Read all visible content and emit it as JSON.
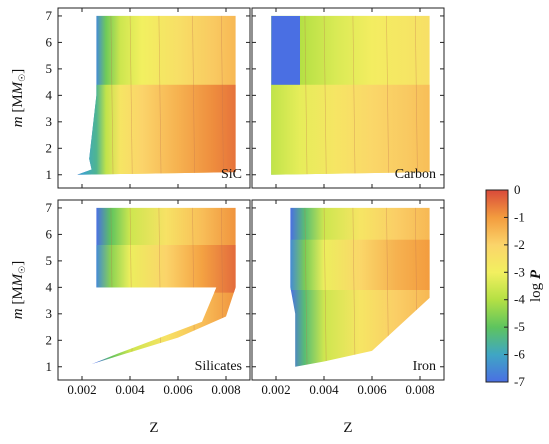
{
  "chart_data": {
    "type": "heatmap",
    "layout": "2x2 panels sharing axes",
    "x": {
      "label": "Z",
      "range": [
        0.001,
        0.009
      ],
      "ticks": [
        0.002,
        0.004,
        0.006,
        0.008
      ],
      "tick_labels": [
        "0.002",
        "0.004",
        "0.006",
        "0.008"
      ]
    },
    "y": {
      "label_main": "m",
      "label_unit": "[M",
      "label_sub": "☉",
      "label_close": "]",
      "range": [
        0.5,
        7.3
      ],
      "ticks": [
        1,
        2,
        3,
        4,
        5,
        6,
        7
      ],
      "tick_labels": [
        "1",
        "2",
        "3",
        "4",
        "5",
        "6",
        "7"
      ]
    },
    "colorbar": {
      "label_prefix": "log",
      "label_var": "P",
      "range": [
        -7,
        0
      ],
      "ticks": [
        0,
        -1,
        -2,
        -3,
        -4,
        -5,
        -6,
        -7
      ],
      "tick_labels": [
        "0",
        "-1",
        "-2",
        "-3",
        "-4",
        "-5",
        "-6",
        "-7"
      ],
      "stops": [
        {
          "v": -7,
          "color": "#4a6fe3"
        },
        {
          "v": -6,
          "color": "#3fa6c4"
        },
        {
          "v": -5,
          "color": "#5ec45e"
        },
        {
          "v": -4,
          "color": "#b4e044"
        },
        {
          "v": -3,
          "color": "#f2f060"
        },
        {
          "v": -2,
          "color": "#fbd46a"
        },
        {
          "v": -1,
          "color": "#f39c3e"
        },
        {
          "v": 0,
          "color": "#d94a3a"
        }
      ]
    },
    "panels": [
      {
        "name": "SiC",
        "region": [
          [
            0.0024,
            1.2
          ],
          [
            0.0023,
            1.6
          ],
          [
            0.0024,
            2.4
          ],
          [
            0.0025,
            3.2
          ],
          [
            0.0026,
            4.0
          ],
          [
            0.0026,
            5.5
          ],
          [
            0.0026,
            7.0
          ],
          [
            0.0084,
            7.0
          ],
          [
            0.0084,
            1.1
          ],
          [
            0.0018,
            1.0
          ]
        ],
        "field": [
          [
            0.0021,
            -7
          ],
          [
            0.0026,
            -6.5
          ],
          [
            0.003,
            -4.8
          ],
          [
            0.0036,
            -3.6
          ],
          [
            0.0045,
            -3.0
          ],
          [
            0.006,
            -2.4
          ],
          [
            0.0075,
            -1.8
          ],
          [
            0.0084,
            -1.5
          ]
        ],
        "band": {
          "m": [
            1.0,
            4.4
          ],
          "dv": 1.0
        }
      },
      {
        "name": "Carbon",
        "region": [
          [
            0.0018,
            7.0
          ],
          [
            0.0084,
            7.0
          ],
          [
            0.0084,
            1.1
          ],
          [
            0.0018,
            1.0
          ]
        ],
        "field": [
          [
            0.0018,
            -4.6
          ],
          [
            0.003,
            -4.0
          ],
          [
            0.0045,
            -3.4
          ],
          [
            0.006,
            -2.9
          ],
          [
            0.0075,
            -2.6
          ],
          [
            0.0084,
            -2.4
          ]
        ],
        "band": {
          "m": [
            1.0,
            4.4
          ],
          "dv": 0.8
        },
        "patch": {
          "z": [
            0.0018,
            0.003
          ],
          "m": [
            4.4,
            7.0
          ],
          "v": -7
        }
      },
      {
        "name": "Silicates",
        "region": [
          [
            0.0026,
            7.0
          ],
          [
            0.0084,
            7.0
          ],
          [
            0.0084,
            4.0
          ],
          [
            0.0026,
            4.0
          ]
        ],
        "region2": [
          [
            0.0024,
            1.1
          ],
          [
            0.006,
            2.1
          ],
          [
            0.008,
            2.9
          ],
          [
            0.0084,
            4.0
          ],
          [
            0.0076,
            4.0
          ],
          [
            0.007,
            2.7
          ],
          [
            0.0035,
            1.5
          ]
        ],
        "field": [
          [
            0.0026,
            -7
          ],
          [
            0.0032,
            -5.0
          ],
          [
            0.004,
            -3.6
          ],
          [
            0.0055,
            -2.5
          ],
          [
            0.007,
            -1.6
          ],
          [
            0.0084,
            -0.9
          ]
        ],
        "band": {
          "m": [
            3.8,
            5.6
          ],
          "dv": 0.5
        }
      },
      {
        "name": "Iron",
        "region": [
          [
            0.0026,
            7.0
          ],
          [
            0.0084,
            7.0
          ],
          [
            0.0084,
            3.6
          ],
          [
            0.006,
            1.6
          ],
          [
            0.004,
            1.2
          ],
          [
            0.0028,
            1.0
          ],
          [
            0.0028,
            3.0
          ],
          [
            0.0026,
            4.0
          ]
        ],
        "field": [
          [
            0.0026,
            -7
          ],
          [
            0.0032,
            -5.2
          ],
          [
            0.004,
            -3.6
          ],
          [
            0.0055,
            -2.6
          ],
          [
            0.007,
            -1.9
          ],
          [
            0.0084,
            -1.5
          ]
        ],
        "band": {
          "m": [
            3.9,
            5.8
          ],
          "dv": 0.5
        }
      }
    ]
  }
}
